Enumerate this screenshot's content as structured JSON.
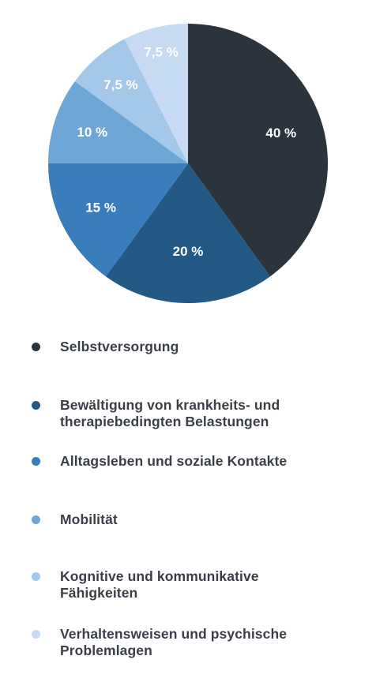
{
  "chart_data": {
    "type": "pie",
    "categories": [
      "Selbstversorgung",
      "Bewältigung von krankheits- und therapiebedingten Belastungen",
      "Alltagsleben und soziale Kontakte",
      "Mobilität",
      "Kognitive und kommunikative Fähigkeiten",
      "Verhaltensweisen und psychische Problemlagen"
    ],
    "values": [
      40,
      20,
      15,
      10,
      7.5,
      7.5
    ],
    "value_labels": [
      "40 %",
      "20 %",
      "15 %",
      "10 %",
      "7,5 %",
      "7,5 %"
    ],
    "colors": [
      "#2b333d",
      "#245985",
      "#3a7dbd",
      "#6ea6d6",
      "#a3c8ea",
      "#c6dbf1"
    ],
    "legend_placement": "bottom",
    "start": "top",
    "direction": "clockwise"
  },
  "legend": [
    {
      "label": "Selbstversorgung",
      "color": "#2b333d"
    },
    {
      "label": "Bewältigung von krankheits- und therapiebedingten Belastungen",
      "color": "#245985"
    },
    {
      "label": "Alltagsleben und soziale Kontakte",
      "color": "#3a7dbd"
    },
    {
      "label": "Mobilität",
      "color": "#6ea6d6"
    },
    {
      "label": "Kognitive und kommunikative Fähigkeiten",
      "color": "#a3c8ea"
    },
    {
      "label": "Verhaltensweisen und psychische Problemlagen",
      "color": "#c6dbf1"
    }
  ]
}
